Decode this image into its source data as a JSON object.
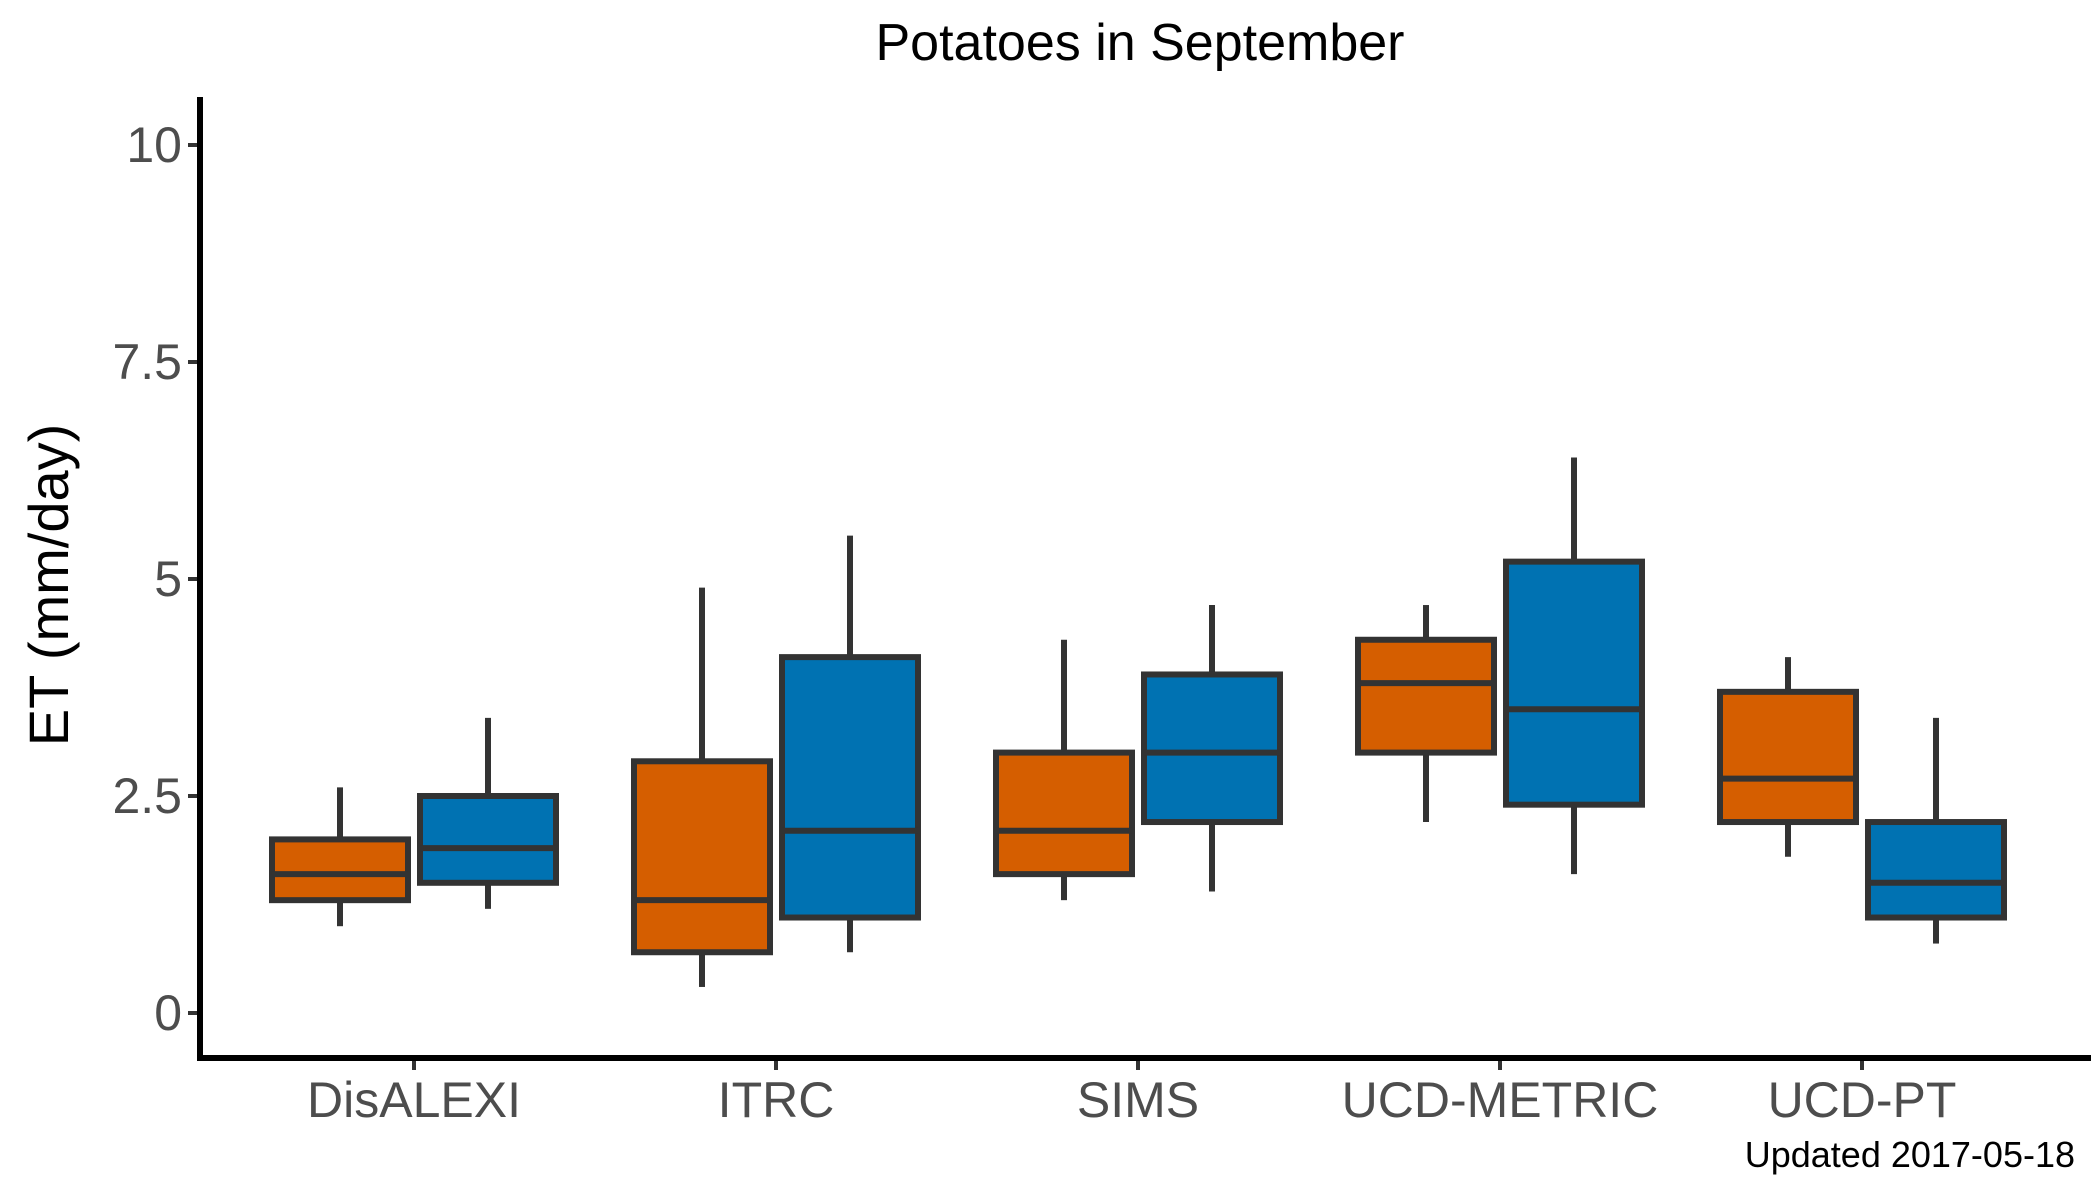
{
  "chart_data": {
    "type": "boxplot",
    "title": "Potatoes in September",
    "xlabel": "",
    "ylabel": "ET (mm/day)",
    "ylim": [
      -0.5,
      10.5
    ],
    "yticks": [
      0,
      2.5,
      5,
      7.5,
      10
    ],
    "ytick_labels": [
      "0",
      "2.5",
      "5",
      "7.5",
      "10"
    ],
    "categories": [
      "DisALEXI",
      "ITRC",
      "SIMS",
      "UCD-METRIC",
      "UCD-PT"
    ],
    "grid": false,
    "legend": "none",
    "series": [
      {
        "color": "#D55E00",
        "boxes": [
          {
            "min": 1.0,
            "q1": 1.3,
            "median": 1.6,
            "q3": 2.0,
            "max": 2.6
          },
          {
            "min": 0.3,
            "q1": 0.7,
            "median": 1.3,
            "q3": 2.9,
            "max": 4.9
          },
          {
            "min": 1.3,
            "q1": 1.6,
            "median": 2.1,
            "q3": 3.0,
            "max": 4.3
          },
          {
            "min": 2.2,
            "q1": 3.0,
            "median": 3.8,
            "q3": 4.3,
            "max": 4.7
          },
          {
            "min": 1.8,
            "q1": 2.2,
            "median": 2.7,
            "q3": 3.7,
            "max": 4.1
          }
        ]
      },
      {
        "color": "#0072B2",
        "boxes": [
          {
            "min": 1.2,
            "q1": 1.5,
            "median": 1.9,
            "q3": 2.5,
            "max": 3.4
          },
          {
            "min": 0.7,
            "q1": 1.1,
            "median": 2.1,
            "q3": 4.1,
            "max": 5.5
          },
          {
            "min": 1.4,
            "q1": 2.2,
            "median": 3.0,
            "q3": 3.9,
            "max": 4.7
          },
          {
            "min": 1.6,
            "q1": 2.4,
            "median": 3.5,
            "q3": 5.2,
            "max": 6.4
          },
          {
            "min": 0.8,
            "q1": 1.1,
            "median": 1.5,
            "q3": 2.2,
            "max": 3.4
          }
        ]
      }
    ],
    "footnote": "Updated  2017-05-18"
  }
}
